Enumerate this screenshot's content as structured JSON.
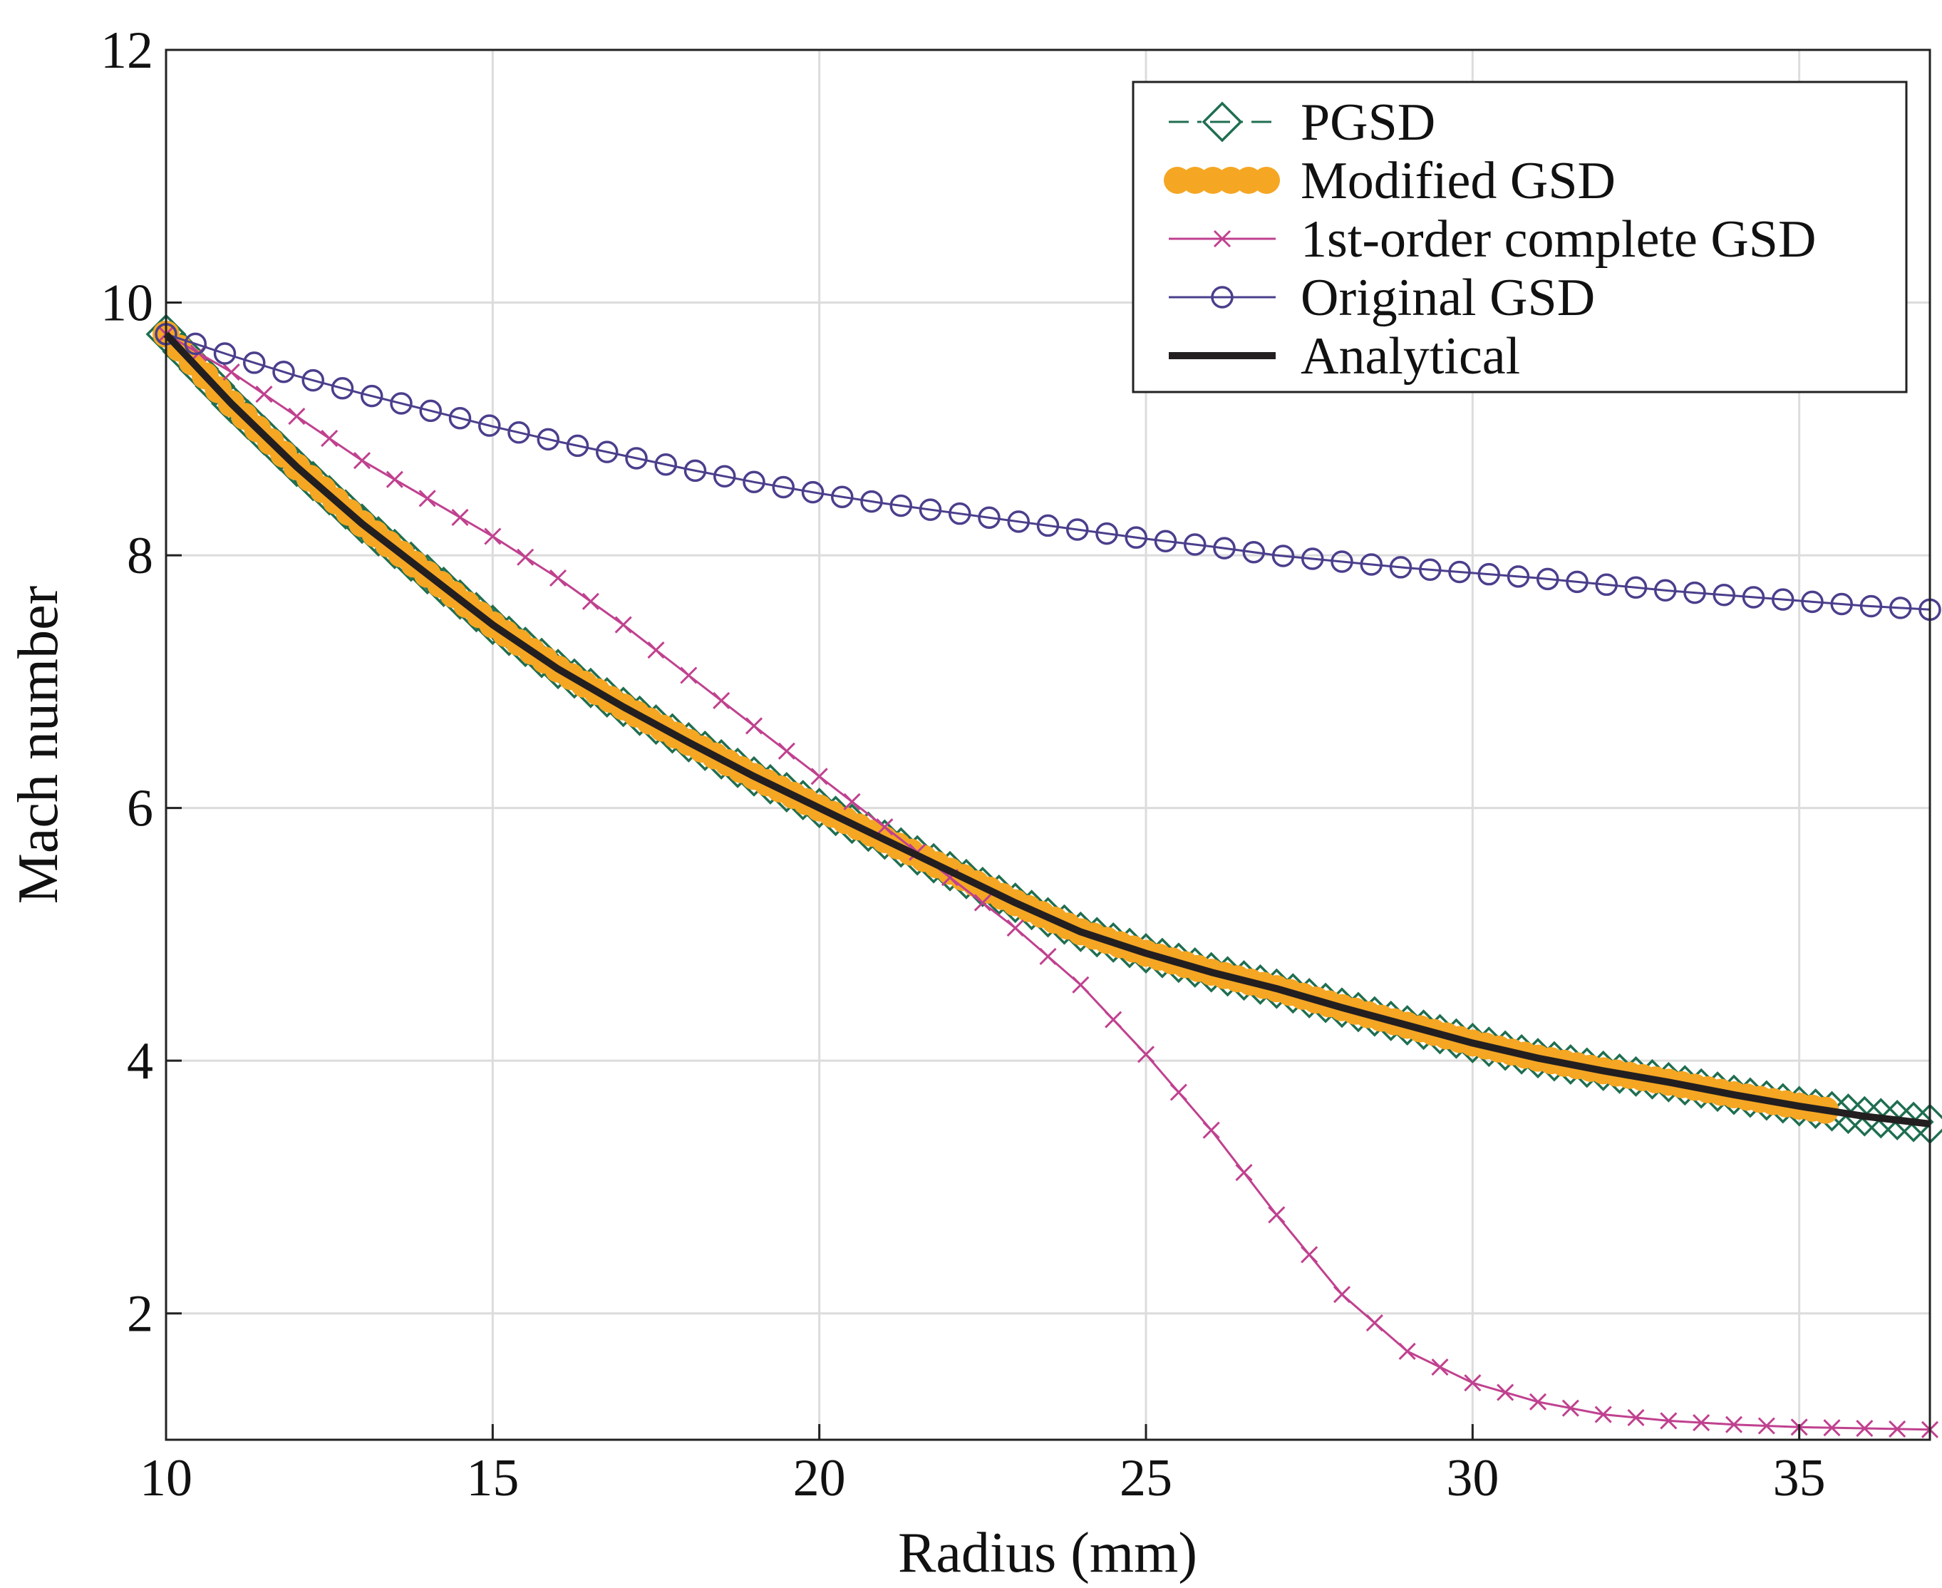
{
  "chart_data": {
    "type": "line",
    "title": "",
    "xlabel": "Radius (mm)",
    "ylabel": "Mach number",
    "xlim": [
      10,
      37
    ],
    "ylim": [
      1,
      12
    ],
    "xticks": [
      10,
      15,
      20,
      25,
      30,
      35
    ],
    "yticks": [
      2,
      4,
      6,
      8,
      10,
      12
    ],
    "grid": true,
    "legend_position": "top-right",
    "series": [
      {
        "name": "PGSD",
        "color": "#1f6e50",
        "line_style": "dash-dot",
        "marker": "diamond",
        "x": [
          10,
          11,
          12,
          13,
          14,
          15,
          16,
          17,
          18,
          19,
          20,
          21,
          22,
          23,
          24,
          25,
          26,
          27,
          28,
          29,
          30,
          31,
          32,
          33,
          34,
          35,
          36,
          37
        ],
        "y": [
          9.75,
          9.2,
          8.7,
          8.25,
          7.85,
          7.45,
          7.1,
          6.8,
          6.52,
          6.25,
          6.0,
          5.75,
          5.5,
          5.25,
          5.02,
          4.85,
          4.7,
          4.57,
          4.42,
          4.28,
          4.14,
          4.02,
          3.92,
          3.83,
          3.73,
          3.64,
          3.56,
          3.5
        ]
      },
      {
        "name": "Modified GSD",
        "color": "#f5a623",
        "line_style": "solid",
        "marker": "filled-circle",
        "x": [
          10,
          11,
          12,
          13,
          14,
          15,
          16,
          17,
          18,
          19,
          20,
          21,
          22,
          23,
          24,
          25,
          26,
          27,
          28,
          29,
          30,
          31,
          32,
          33,
          34,
          35,
          35.5
        ],
        "y": [
          9.75,
          9.2,
          8.7,
          8.25,
          7.85,
          7.45,
          7.1,
          6.8,
          6.52,
          6.25,
          6.0,
          5.75,
          5.5,
          5.25,
          5.02,
          4.85,
          4.7,
          4.57,
          4.42,
          4.28,
          4.14,
          4.02,
          3.92,
          3.83,
          3.73,
          3.64,
          3.6
        ]
      },
      {
        "name": "1st-order complete GSD",
        "color": "#c0418f",
        "line_style": "solid",
        "marker": "x",
        "x": [
          10,
          11,
          12,
          13,
          14,
          15,
          16,
          17,
          18,
          19,
          20,
          21,
          22,
          23,
          24,
          25,
          26,
          27,
          28,
          29,
          30,
          31,
          32,
          33,
          34,
          35,
          36,
          37
        ],
        "y": [
          9.75,
          9.45,
          9.1,
          8.75,
          8.45,
          8.15,
          7.82,
          7.45,
          7.05,
          6.65,
          6.25,
          5.85,
          5.45,
          5.05,
          4.6,
          4.05,
          3.45,
          2.78,
          2.15,
          1.7,
          1.45,
          1.3,
          1.2,
          1.15,
          1.12,
          1.1,
          1.09,
          1.08
        ]
      },
      {
        "name": "Original GSD",
        "color": "#4a3f8c",
        "line_style": "solid",
        "marker": "open-circle",
        "x": [
          10,
          11,
          12,
          13,
          14,
          15,
          16,
          17,
          18,
          19,
          20,
          21,
          22,
          23,
          24,
          25,
          26,
          27,
          28,
          29,
          30,
          31,
          32,
          33,
          34,
          35,
          36,
          37
        ],
        "y": [
          9.75,
          9.58,
          9.42,
          9.28,
          9.15,
          9.02,
          8.9,
          8.79,
          8.68,
          8.58,
          8.49,
          8.41,
          8.34,
          8.27,
          8.2,
          8.13,
          8.07,
          8.0,
          7.95,
          7.9,
          7.86,
          7.82,
          7.77,
          7.72,
          7.68,
          7.64,
          7.6,
          7.57
        ]
      },
      {
        "name": "Analytical",
        "color": "#231f20",
        "line_style": "solid",
        "marker": "none",
        "x": [
          10,
          11,
          12,
          13,
          14,
          15,
          16,
          17,
          18,
          19,
          20,
          21,
          22,
          23,
          24,
          25,
          26,
          27,
          28,
          29,
          30,
          31,
          32,
          33,
          34,
          35,
          36,
          37
        ],
        "y": [
          9.75,
          9.2,
          8.7,
          8.25,
          7.85,
          7.45,
          7.1,
          6.8,
          6.52,
          6.25,
          6.0,
          5.75,
          5.5,
          5.25,
          5.02,
          4.85,
          4.7,
          4.57,
          4.42,
          4.28,
          4.14,
          4.02,
          3.92,
          3.83,
          3.73,
          3.64,
          3.56,
          3.5
        ]
      }
    ]
  }
}
